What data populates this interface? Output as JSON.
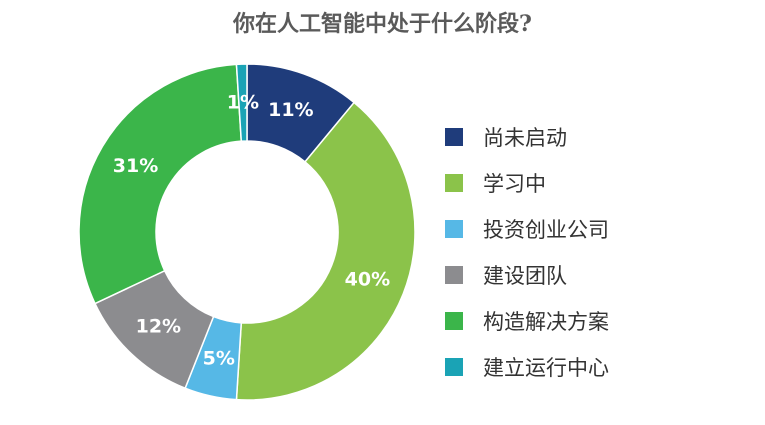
{
  "chart_data": {
    "type": "pie",
    "title": "你在人工智能中处于什么阶段?",
    "categories": [
      "尚未启动",
      "学习中",
      "投资创业公司",
      "建设团队",
      "构造解决方案",
      "建立运行中心"
    ],
    "values": [
      11,
      40,
      5,
      12,
      31,
      1
    ],
    "labels": [
      "11%",
      "40%",
      "5%",
      "12%",
      "31%",
      "1%"
    ],
    "colors": [
      "#1f3c7b",
      "#8bc34a",
      "#56b8e6",
      "#8c8c8f",
      "#3bb54a",
      "#1aa3b5"
    ],
    "legend_position": "right"
  }
}
